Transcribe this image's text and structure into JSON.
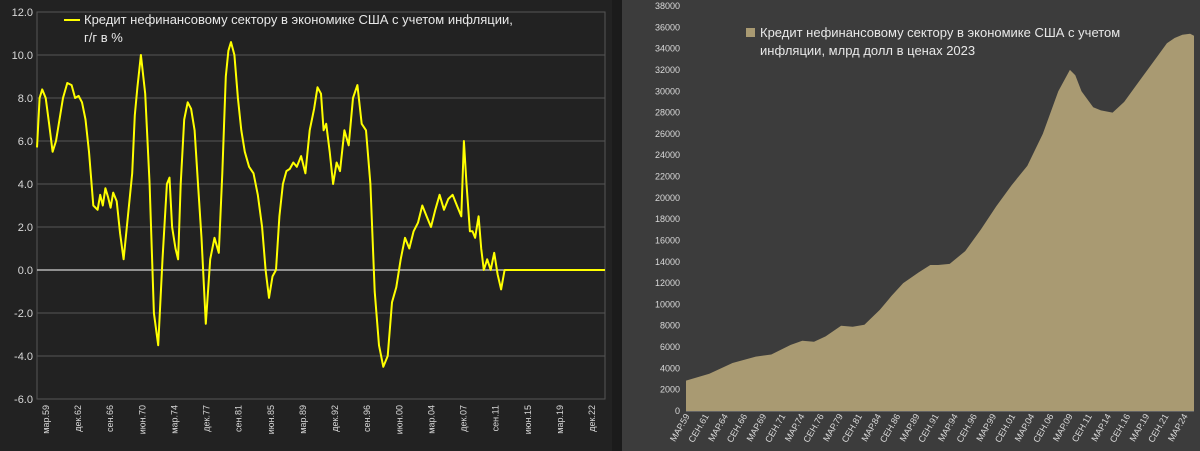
{
  "chart_data": [
    {
      "type": "line",
      "legend": {
        "lines": [
          "Кредит нефинансовому сектору в экономике США с учетом инфляции,",
          "г/г в %"
        ],
        "position": "top-left"
      },
      "ylim": [
        -6.0,
        12.0
      ],
      "y_ticks": [
        "12.0",
        "10.0",
        "8.0",
        "6.0",
        "4.0",
        "2.0",
        "0.0",
        "-2.0",
        "-4.0",
        "-6.0"
      ],
      "x_ticks": [
        "мар.59",
        "дек.62",
        "сен.66",
        "июн.70",
        "мар.74",
        "дек.77",
        "сен.81",
        "июн.85",
        "мар.89",
        "дек.92",
        "сен.96",
        "июн.00",
        "мар.04",
        "дек.07",
        "сен.11",
        "июн.15",
        "мар.19",
        "дек.22"
      ],
      "x_range": [
        1959.0,
        2024.6
      ],
      "grid": true,
      "zero_line": true,
      "colors": {
        "series": "#ffff00",
        "background": "#222222",
        "grid": "#555555",
        "zero": "#ffffff"
      },
      "series": [
        {
          "x": [
            1959.0,
            1959.3,
            1959.6,
            1960.0,
            1960.4,
            1960.8,
            1961.2,
            1961.6,
            1962.0,
            1962.5,
            1963.0,
            1963.4,
            1963.8,
            1964.2,
            1964.6,
            1965.0,
            1965.5,
            1966.0,
            1966.3,
            1966.6,
            1966.9,
            1967.2,
            1967.5,
            1967.8,
            1968.2,
            1968.6,
            1969.0,
            1969.5,
            1970.0,
            1970.3,
            1970.6,
            1971.0,
            1971.5,
            1972.0,
            1972.5,
            1973.0,
            1973.5,
            1974.0,
            1974.3,
            1974.6,
            1975.0,
            1975.3,
            1975.6,
            1976.0,
            1976.4,
            1976.8,
            1977.2,
            1977.6,
            1978.0,
            1978.5,
            1979.0,
            1979.5,
            1980.0,
            1980.4,
            1980.8,
            1981.1,
            1981.4,
            1981.8,
            1982.2,
            1982.6,
            1983.0,
            1983.5,
            1984.0,
            1984.5,
            1985.0,
            1985.4,
            1985.8,
            1986.2,
            1986.6,
            1987.0,
            1987.4,
            1987.8,
            1988.2,
            1988.6,
            1989.0,
            1989.5,
            1990.0,
            1990.5,
            1991.0,
            1991.4,
            1991.8,
            1992.1,
            1992.4,
            1992.8,
            1993.2,
            1993.6,
            1994.0,
            1994.5,
            1995.0,
            1995.5,
            1996.0,
            1996.5,
            1997.0,
            1997.5,
            1998.0,
            1998.5,
            1999.0,
            1999.5,
            2000.0,
            2000.5,
            2001.0,
            2001.5,
            2002.0,
            2002.5,
            2003.0,
            2003.5,
            2004.0,
            2004.5,
            2005.0,
            2005.5,
            2006.0,
            2006.5,
            2007.0,
            2007.5,
            2008.0,
            2008.3,
            2008.6,
            2009.0,
            2009.3,
            2009.6,
            2010.0,
            2010.3,
            2010.6,
            2011.0,
            2011.4,
            2011.8,
            2012.2,
            2012.6,
            2013.0,
            2013.5,
            2014.0,
            2014.5,
            2015.0,
            2015.5,
            2016.0,
            2016.5,
            2017.0,
            2017.5,
            2018.0,
            2018.5,
            2019.0,
            2019.3,
            2019.6,
            2020.0,
            2020.2,
            2020.4,
            2020.7,
            2021.0,
            2021.3,
            2021.6,
            2022.0,
            2022.3,
            2022.6,
            2023.0,
            2023.3,
            2023.6,
            2024.0,
            2024.3,
            2024.6
          ],
          "values": [
            5.7,
            8.0,
            8.4,
            8.0,
            6.8,
            5.5,
            6.0,
            7.0,
            8.0,
            8.7,
            8.6,
            8.0,
            8.1,
            7.8,
            7.0,
            5.5,
            3.0,
            2.8,
            3.5,
            3.0,
            3.8,
            3.4,
            2.9,
            3.6,
            3.2,
            1.7,
            0.5,
            2.5,
            4.5,
            7.2,
            8.5,
            10.0,
            8.2,
            4.0,
            -2.0,
            -3.5,
            0.5,
            4.0,
            4.3,
            2.0,
            1.0,
            0.5,
            4.0,
            7.0,
            7.8,
            7.5,
            6.5,
            4.0,
            1.5,
            -2.5,
            0.5,
            1.5,
            0.8,
            4.5,
            9.0,
            10.2,
            10.6,
            10.0,
            8.0,
            6.5,
            5.5,
            4.8,
            4.5,
            3.5,
            2.0,
            0.0,
            -1.3,
            -0.3,
            0.0,
            2.5,
            4.0,
            4.6,
            4.7,
            5.0,
            4.8,
            5.3,
            4.5,
            6.5,
            7.5,
            8.5,
            8.2,
            6.5,
            6.8,
            5.5,
            4.0,
            5.0,
            4.6,
            6.5,
            5.8,
            8.0,
            8.6,
            6.8,
            6.5,
            4.0,
            -1.0,
            -3.5,
            -4.5,
            -4.0,
            -1.5,
            -0.8,
            0.5,
            1.5,
            1.0,
            1.8,
            2.2,
            3.0,
            2.5,
            2.0,
            2.8,
            3.5,
            2.8,
            3.3,
            3.5,
            3.0,
            2.5,
            6.0,
            4.0,
            1.8,
            1.8,
            1.5,
            2.5,
            1.0,
            0.0,
            0.5,
            0.0,
            0.8,
            -0.2,
            -0.9,
            0,
            0,
            0,
            0,
            0,
            0,
            0,
            0,
            0,
            0,
            0,
            0,
            0,
            0,
            0,
            0,
            0,
            0,
            0,
            0,
            0,
            0,
            0,
            0,
            0,
            0,
            0,
            0,
            0,
            0,
            0
          ]
        }
      ]
    },
    {
      "type": "area",
      "legend": {
        "lines": [
          "Кредит нефинансовому сектору в экономике США с учетом",
          "инфляции, млрд долл в ценах 2023"
        ],
        "position": "top-left"
      },
      "ylim": [
        0,
        38000
      ],
      "y_ticks": [
        "38000",
        "36000",
        "34000",
        "32000",
        "30000",
        "28000",
        "26000",
        "24000",
        "22000",
        "20000",
        "18000",
        "16000",
        "14000",
        "12000",
        "10000",
        "8000",
        "6000",
        "4000",
        "2000",
        "0"
      ],
      "x_ticks": [
        "МАР.59",
        "СЕН.61",
        "МАР.64",
        "СЕН.66",
        "МАР.69",
        "СЕН.71",
        "МАР.74",
        "СЕН.76",
        "МАР.79",
        "СЕН.81",
        "МАР.84",
        "СЕН.86",
        "МАР.89",
        "СЕН.91",
        "МАР.94",
        "СЕН.96",
        "МАР.99",
        "СЕН.01",
        "МАР.04",
        "СЕН.06",
        "МАР.09",
        "СЕН.11",
        "МАР.14",
        "СЕН.16",
        "МАР.19",
        "СЕН.21",
        "МАР.24"
      ],
      "x_range": [
        1959.0,
        2024.5
      ],
      "grid": false,
      "colors": {
        "fill": "#a99a72",
        "background": "#3c3c3c"
      },
      "series": [
        {
          "x": [
            1959.0,
            1962.0,
            1965.0,
            1968.0,
            1970.0,
            1972.5,
            1974.0,
            1975.5,
            1977.0,
            1979.0,
            1980.5,
            1982.0,
            1984.0,
            1985.5,
            1987.0,
            1989.0,
            1990.5,
            1991.5,
            1993.0,
            1995.0,
            1997.0,
            1999.0,
            2001.0,
            2003.0,
            2005.0,
            2007.0,
            2008.5,
            2009.2,
            2010.0,
            2011.5,
            2012.5,
            2014.0,
            2015.5,
            2017.0,
            2018.5,
            2020.0,
            2021.0,
            2022.0,
            2023.0,
            2024.0,
            2024.5
          ],
          "values": [
            2850,
            3500,
            4500,
            5100,
            5300,
            6200,
            6600,
            6500,
            7000,
            8000,
            7900,
            8100,
            9500,
            10800,
            12000,
            13000,
            13700,
            13700,
            13800,
            15000,
            17000,
            19200,
            21200,
            23000,
            26000,
            30000,
            32000,
            31500,
            30000,
            28500,
            28200,
            28000,
            29000,
            30500,
            32000,
            33500,
            34500,
            35000,
            35300,
            35400,
            35200
          ]
        }
      ]
    }
  ]
}
